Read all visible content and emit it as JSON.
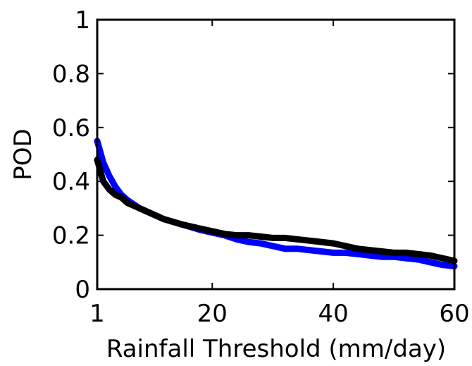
{
  "chart_data": {
    "type": "line",
    "xlabel": "Rainfall Threshold (mm/day)",
    "ylabel": "POD",
    "xlim": [
      1,
      60
    ],
    "ylim": [
      0,
      1
    ],
    "x_ticks": [
      1,
      20,
      40,
      60
    ],
    "x_tick_labels": [
      "1",
      "20",
      "40",
      "60"
    ],
    "y_ticks": [
      0,
      0.2,
      0.4,
      0.6,
      0.8,
      1
    ],
    "y_tick_labels": [
      "0",
      "0.2",
      "0.4",
      "0.6",
      "0.8",
      "1"
    ],
    "grid": false,
    "legend": "none",
    "series": [
      {
        "color": "#0000ff",
        "x": [
          1,
          2,
          3,
          4,
          5,
          6,
          8,
          10,
          12,
          15,
          18,
          20,
          22,
          24,
          26,
          28,
          30,
          32,
          34,
          36,
          38,
          40,
          42,
          44,
          46,
          48,
          50,
          52,
          54,
          56,
          58,
          60
        ],
        "y": [
          0.55,
          0.47,
          0.42,
          0.38,
          0.35,
          0.33,
          0.3,
          0.28,
          0.26,
          0.24,
          0.22,
          0.21,
          0.2,
          0.185,
          0.175,
          0.17,
          0.16,
          0.15,
          0.15,
          0.145,
          0.14,
          0.135,
          0.135,
          0.13,
          0.125,
          0.12,
          0.12,
          0.115,
          0.11,
          0.1,
          0.09,
          0.085
        ]
      },
      {
        "color": "#000000",
        "x": [
          1,
          2,
          3,
          4,
          5,
          6,
          8,
          10,
          12,
          15,
          18,
          20,
          22,
          24,
          26,
          28,
          30,
          32,
          34,
          36,
          38,
          40,
          42,
          44,
          46,
          48,
          50,
          52,
          54,
          56,
          58,
          60
        ],
        "y": [
          0.48,
          0.4,
          0.37,
          0.35,
          0.34,
          0.32,
          0.3,
          0.28,
          0.26,
          0.24,
          0.225,
          0.215,
          0.205,
          0.2,
          0.2,
          0.195,
          0.19,
          0.19,
          0.185,
          0.18,
          0.175,
          0.17,
          0.16,
          0.15,
          0.145,
          0.14,
          0.135,
          0.135,
          0.13,
          0.125,
          0.115,
          0.105
        ]
      }
    ]
  }
}
